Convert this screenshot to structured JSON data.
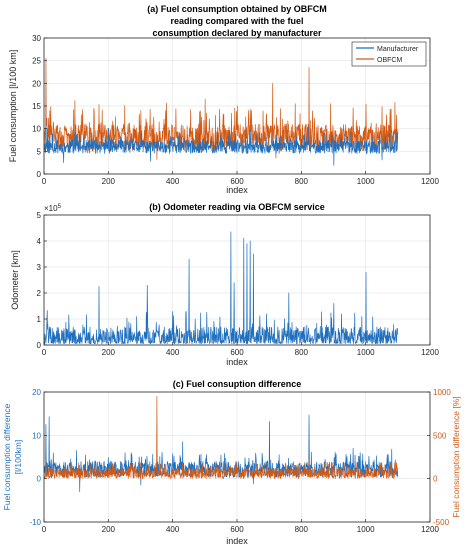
{
  "colors": {
    "blue": "#1f6fbf",
    "orange": "#d45a14",
    "axis": "#262626",
    "grid": "#dcdcdc"
  },
  "chart_data": [
    {
      "type": "line",
      "title_lines": [
        "(a) Fuel consumption obtained by OBFCM",
        "reading compared with the fuel",
        "consumption declared by manufacturer"
      ],
      "xlabel": "index",
      "ylabel": "Fuel consumption [l/100 km]",
      "xlim": [
        0,
        1200
      ],
      "ylim": [
        0,
        30
      ],
      "xticks": [
        0,
        200,
        400,
        600,
        800,
        1000,
        1200
      ],
      "yticks": [
        0,
        5,
        10,
        15,
        20,
        25,
        30
      ],
      "grid": true,
      "legend_position": "top-right",
      "n_points": 1100,
      "series": [
        {
          "name": "Manufacturer",
          "color": "#1f6fbf",
          "typical_range": [
            4.5,
            7.5
          ],
          "spikes": [
            [
              8,
              10.5
            ],
            [
              95,
              9.2
            ],
            [
              200,
              10.1
            ],
            [
              420,
              8.9
            ],
            [
              640,
              9.8
            ],
            [
              820,
              10.4
            ],
            [
              1080,
              9.5
            ]
          ],
          "dips": [
            [
              60,
              2.5
            ],
            [
              330,
              2.8
            ],
            [
              900,
              1.9
            ],
            [
              1050,
              3.1
            ]
          ]
        },
        {
          "name": "OBFCM",
          "color": "#d45a14",
          "typical_range": [
            5,
            11
          ],
          "spikes": [
            [
              5,
              25.5
            ],
            [
              20,
              14.8
            ],
            [
              95,
              16.2
            ],
            [
              170,
              15.3
            ],
            [
              250,
              15.1
            ],
            [
              300,
              14.0
            ],
            [
              380,
              15.6
            ],
            [
              455,
              14.2
            ],
            [
              500,
              16.5
            ],
            [
              545,
              14.3
            ],
            [
              600,
              15.0
            ],
            [
              680,
              13.9
            ],
            [
              710,
              20.0
            ],
            [
              780,
              15.5
            ],
            [
              823,
              23.5
            ],
            [
              890,
              15.5
            ],
            [
              960,
              14.6
            ],
            [
              1000,
              15.4
            ],
            [
              1050,
              14.9
            ],
            [
              1090,
              15.8
            ]
          ],
          "dips": [
            [
              350,
              3.2
            ],
            [
              720,
              3.5
            ]
          ]
        }
      ]
    },
    {
      "type": "line",
      "title": "(b) Odometer reading via OBFCM service",
      "xlabel": "index",
      "ylabel": "Odometer [km]",
      "exponent_label": "10^5",
      "xlim": [
        0,
        1200
      ],
      "ylim": [
        0,
        500000
      ],
      "xticks": [
        0,
        200,
        400,
        600,
        800,
        1000,
        1200
      ],
      "yticks": [
        0,
        100000,
        200000,
        300000,
        400000,
        500000
      ],
      "ytick_labels": [
        "0",
        "1",
        "2",
        "3",
        "4",
        "5"
      ],
      "grid": true,
      "n_points": 1100,
      "series": [
        {
          "color": "#1f6fbf",
          "typical_range": [
            5000,
            70000
          ],
          "spikes": [
            [
              170,
              225000
            ],
            [
              320,
              230000
            ],
            [
              450,
              330000
            ],
            [
              580,
              435000
            ],
            [
              590,
              240000
            ],
            [
              620,
              410000
            ],
            [
              630,
              390000
            ],
            [
              640,
              400000
            ],
            [
              650,
              350000
            ],
            [
              1000,
              280000
            ],
            [
              760,
              200000
            ],
            [
              900,
              160000
            ]
          ]
        }
      ]
    },
    {
      "type": "line",
      "title": "(c) Fuel consuption difference",
      "xlabel": "index",
      "ylabel_left": [
        "Fuel consumption difference",
        "[l/100km]"
      ],
      "ylabel_right": "Fuel consumption difference [%]",
      "xlim": [
        0,
        1200
      ],
      "ylim_left": [
        -10,
        20
      ],
      "ylim_right": [
        -500,
        1000
      ],
      "xticks": [
        0,
        200,
        400,
        600,
        800,
        1000,
        1200
      ],
      "yticks_left": [
        -10,
        0,
        10,
        20
      ],
      "yticks_right": [
        -500,
        0,
        500,
        1000
      ],
      "grid": true,
      "n_points": 1100,
      "series": [
        {
          "color": "#1f6fbf",
          "axis": "left",
          "typical_range": [
            0.3,
            4
          ],
          "spikes": [
            [
              5,
              12.5
            ],
            [
              15,
              14.3
            ],
            [
              100,
              6.5
            ],
            [
              270,
              6.0
            ],
            [
              430,
              8.5
            ],
            [
              560,
              5.8
            ],
            [
              700,
              13.2
            ],
            [
              823,
              14.7
            ],
            [
              960,
              7.0
            ],
            [
              1080,
              6.8
            ]
          ],
          "dips": [
            [
              110,
              -3.0
            ],
            [
              300,
              -1.5
            ],
            [
              650,
              -1.2
            ]
          ]
        },
        {
          "color": "#d45a14",
          "axis": "right",
          "typical_range": [
            0,
            120
          ],
          "spikes": [
            [
              350,
              950
            ],
            [
              5,
              200
            ],
            [
              430,
              180
            ],
            [
              700,
              170
            ],
            [
              823,
              230
            ]
          ],
          "dips": [
            [
              110,
              -40
            ]
          ]
        }
      ]
    }
  ]
}
